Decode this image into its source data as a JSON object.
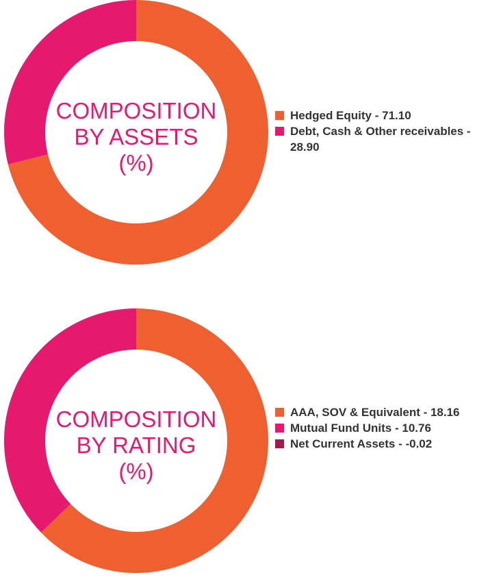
{
  "colors": {
    "orange": "#ee6030",
    "pink": "#e5196e",
    "maroon": "#9c1d4f",
    "text": "#333333"
  },
  "chart_data": [
    {
      "type": "pie",
      "variant": "donut",
      "center_label": [
        "COMPOSITION",
        "BY ASSETS",
        "(%)"
      ],
      "slices": [
        {
          "label": "Hedged Equity - 71.10",
          "value": 71.1,
          "color": "#ee6030"
        },
        {
          "label": "Debt, Cash & Other receivables - 28.90",
          "value": 28.9,
          "color": "#e5196e"
        }
      ],
      "legend_placement": "right"
    },
    {
      "type": "pie",
      "variant": "donut",
      "center_label": [
        "COMPOSITION",
        "BY RATING",
        "(%)"
      ],
      "slices": [
        {
          "label": "AAA, SOV & Equivalent - 18.16",
          "value": 18.16,
          "color": "#ee6030"
        },
        {
          "label": "Mutual Fund Units - 10.76",
          "value": 10.76,
          "color": "#e5196e"
        },
        {
          "label": "Net Current Assets - -0.02",
          "value": -0.02,
          "color": "#9c1d4f"
        }
      ],
      "legend_placement": "right"
    }
  ]
}
